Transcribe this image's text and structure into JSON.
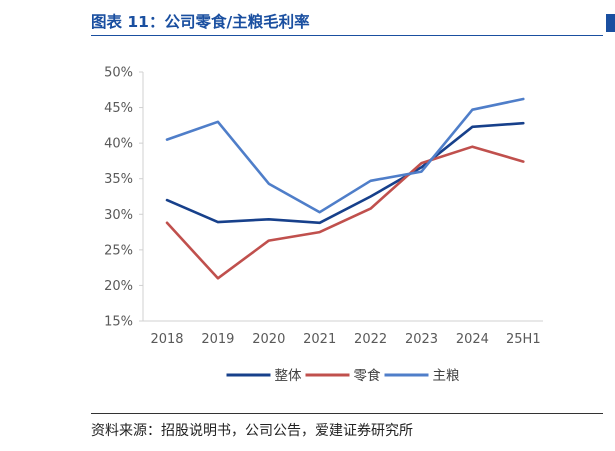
{
  "header": {
    "title": "图表 11：公司零食/主粮毛利率"
  },
  "chart_data": {
    "type": "line",
    "title": "",
    "xlabel": "",
    "ylabel": "",
    "categories": [
      "2018",
      "2019",
      "2020",
      "2021",
      "2022",
      "2023",
      "2024",
      "25H1"
    ],
    "ylim": [
      15,
      50
    ],
    "yticks": [
      "15%",
      "20%",
      "25%",
      "30%",
      "35%",
      "40%",
      "45%",
      "50%"
    ],
    "grid": false,
    "legend_position": "bottom",
    "series": [
      {
        "name": "整体",
        "color": "#17408b",
        "values": [
          32.0,
          28.9,
          29.3,
          28.8,
          32.5,
          36.6,
          42.3,
          42.8
        ]
      },
      {
        "name": "零食",
        "color": "#c0504d",
        "values": [
          28.8,
          21.0,
          26.3,
          27.5,
          30.8,
          37.2,
          39.5,
          37.4
        ]
      },
      {
        "name": "主粮",
        "color": "#4f7ec9",
        "values": [
          40.5,
          43.0,
          34.3,
          30.3,
          34.7,
          36.0,
          44.7,
          46.2
        ]
      }
    ]
  },
  "footer": {
    "source": "资料来源：招股说明书，公司公告，爱建证券研究所"
  }
}
